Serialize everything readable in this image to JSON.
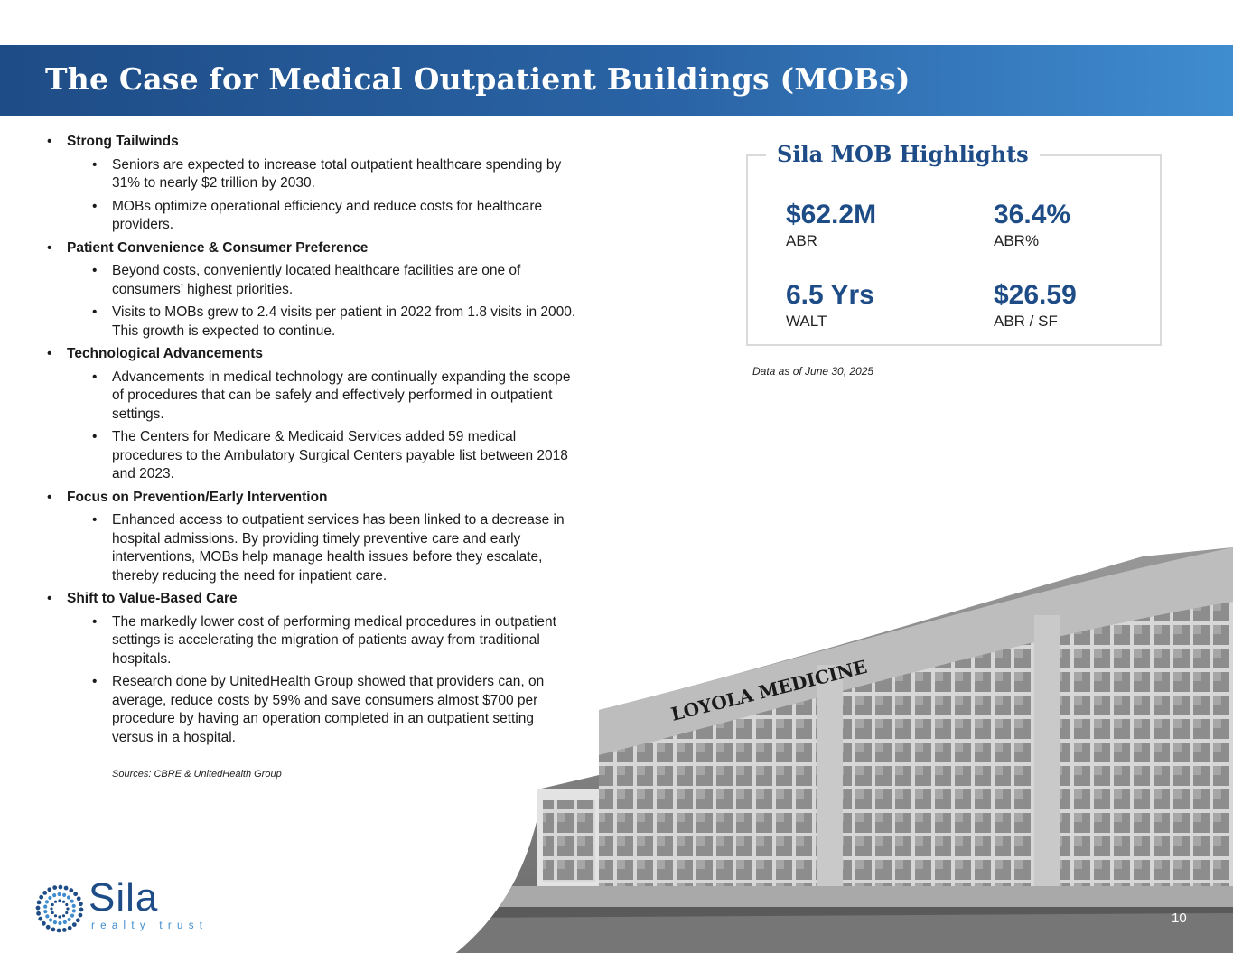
{
  "header": {
    "title": "The Case for Medical Outpatient Buildings (MOBs)"
  },
  "sections": [
    {
      "heading": "Strong Tailwinds",
      "items": [
        "Seniors are expected to increase total outpatient healthcare spending by 31% to nearly $2 trillion by 2030.",
        "MOBs optimize operational efficiency and reduce costs for healthcare providers."
      ]
    },
    {
      "heading": "Patient Convenience & Consumer Preference",
      "items": [
        "Beyond costs, conveniently located healthcare facilities are one of consumers’ highest priorities.",
        "Visits to MOBs grew to 2.4 visits per patient in 2022 from 1.8 visits in 2000. This growth is expected to continue."
      ]
    },
    {
      "heading": "Technological Advancements",
      "items": [
        "Advancements in medical technology are continually expanding the scope of procedures that can be safely and effectively performed in outpatient settings.",
        "The Centers for Medicare & Medicaid Services added 59 medical procedures to the Ambulatory Surgical Centers payable list between 2018 and 2023."
      ]
    },
    {
      "heading": "Focus on Prevention/Early Intervention",
      "items": [
        "Enhanced access to outpatient services has been linked to a decrease in hospital admissions. By providing timely preventive care and early interventions, MOBs help manage health issues before they escalate, thereby reducing the need for inpatient care."
      ]
    },
    {
      "heading": "Shift to Value-Based Care",
      "items": [
        "The markedly lower cost of performing medical procedures in outpatient settings is accelerating the migration of patients away from traditional hospitals.",
        "Research done by UnitedHealth Group showed that providers can, on average, reduce costs by 59% and save consumers almost $700 per procedure by having an operation completed in an outpatient setting versus in a hospital."
      ]
    }
  ],
  "sources": "Sources: CBRE & UnitedHealth Group",
  "highlights": {
    "title": "Sila MOB Highlights",
    "stats": [
      {
        "value": "$62.2M",
        "label": "ABR"
      },
      {
        "value": "36.4%",
        "label": "ABR%"
      },
      {
        "value": "6.5 Yrs",
        "label": "WALT"
      },
      {
        "value": "$26.59",
        "label": "ABR / SF"
      }
    ],
    "as_of": "Data as of June 30, 2025"
  },
  "photo": {
    "sign_text": "LOYOLA MEDICINE"
  },
  "brand": {
    "name": "Sila",
    "tagline": "realty trust",
    "accent": "#1e4c86",
    "light": "#3f8ccf"
  },
  "page_number": "10"
}
